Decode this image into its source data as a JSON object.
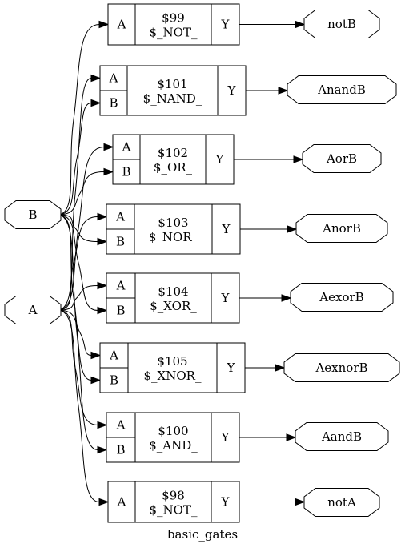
{
  "title": "basic_gates",
  "inputs": [
    {
      "id": "B",
      "label": "B"
    },
    {
      "id": "A",
      "label": "A"
    }
  ],
  "cells": [
    {
      "id": "$99",
      "type": "$_NOT_",
      "pins": [
        "A"
      ],
      "out": "Y",
      "target": "notB"
    },
    {
      "id": "$101",
      "type": "$_NAND_",
      "pins": [
        "A",
        "B"
      ],
      "out": "Y",
      "target": "AnandB"
    },
    {
      "id": "$102",
      "type": "$_OR_",
      "pins": [
        "A",
        "B"
      ],
      "out": "Y",
      "target": "AorB"
    },
    {
      "id": "$103",
      "type": "$_NOR_",
      "pins": [
        "A",
        "B"
      ],
      "out": "Y",
      "target": "AnorB"
    },
    {
      "id": "$104",
      "type": "$_XOR_",
      "pins": [
        "A",
        "B"
      ],
      "out": "Y",
      "target": "AexorB"
    },
    {
      "id": "$105",
      "type": "$_XNOR_",
      "pins": [
        "A",
        "B"
      ],
      "out": "Y",
      "target": "AexnorB"
    },
    {
      "id": "$100",
      "type": "$_AND_",
      "pins": [
        "A",
        "B"
      ],
      "out": "Y",
      "target": "AandB"
    },
    {
      "id": "$98",
      "type": "$_NOT_",
      "pins": [
        "A"
      ],
      "out": "Y",
      "target": "notA"
    }
  ],
  "outputs": [
    "notB",
    "AnandB",
    "AorB",
    "AnorB",
    "AexorB",
    "AexnorB",
    "AandB",
    "notA"
  ],
  "connections": [
    {
      "from": "B",
      "to": "$99",
      "pin": "A"
    },
    {
      "from": "A",
      "to": "$101",
      "pin": "A"
    },
    {
      "from": "B",
      "to": "$101",
      "pin": "B"
    },
    {
      "from": "A",
      "to": "$102",
      "pin": "A"
    },
    {
      "from": "B",
      "to": "$102",
      "pin": "B"
    },
    {
      "from": "A",
      "to": "$103",
      "pin": "A"
    },
    {
      "from": "B",
      "to": "$103",
      "pin": "B"
    },
    {
      "from": "A",
      "to": "$104",
      "pin": "A"
    },
    {
      "from": "B",
      "to": "$104",
      "pin": "B"
    },
    {
      "from": "A",
      "to": "$105",
      "pin": "A"
    },
    {
      "from": "B",
      "to": "$105",
      "pin": "B"
    },
    {
      "from": "A",
      "to": "$100",
      "pin": "A"
    },
    {
      "from": "B",
      "to": "$100",
      "pin": "B"
    },
    {
      "from": "A",
      "to": "$98",
      "pin": "A"
    }
  ]
}
